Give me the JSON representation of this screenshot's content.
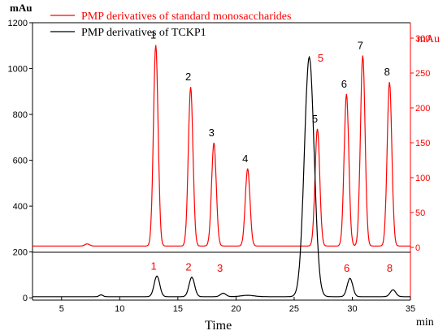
{
  "chart_data": {
    "type": "line",
    "xlabel": "Time",
    "xunit": "min",
    "xlim": [
      2.5,
      35
    ],
    "x_ticks": [
      5,
      10,
      15,
      20,
      25,
      30,
      35
    ],
    "left_axis": {
      "unit": "mAu",
      "color": "#000000",
      "ylim": [
        -10,
        1200
      ],
      "ticks": [
        0,
        200,
        400,
        600,
        800,
        1000,
        1200
      ]
    },
    "right_axis": {
      "unit": "mAu",
      "color": "#ff0000",
      "ylim": [
        -10,
        315
      ],
      "ticks": [
        0,
        50,
        100,
        150,
        200,
        250,
        300
      ]
    },
    "legend": {
      "position": "top-left",
      "entries": [
        {
          "label": "PMP derivatives of standard monosaccharides",
          "color": "#ff0000"
        },
        {
          "label": "PMP derivatives of TCKP1",
          "color": "#000000"
        }
      ]
    },
    "series": [
      {
        "name": "PMP derivatives of standard monosaccharides",
        "axis": "right",
        "color": "#ff0000",
        "baseline": 2,
        "peaks": [
          {
            "label": "1",
            "x": 13.1,
            "y": 290
          },
          {
            "label": "2",
            "x": 16.1,
            "y": 230
          },
          {
            "label": "3",
            "x": 18.1,
            "y": 150
          },
          {
            "label": "4",
            "x": 21.0,
            "y": 113
          },
          {
            "label": "5",
            "x": 27.0,
            "y": 170
          },
          {
            "label": "6",
            "x": 29.5,
            "y": 220
          },
          {
            "label": "7",
            "x": 30.9,
            "y": 275
          },
          {
            "label": "8",
            "x": 33.2,
            "y": 237
          }
        ]
      },
      {
        "name": "PMP derivatives of TCKP1",
        "axis": "left",
        "color": "#000000",
        "baseline": 5,
        "peaks": [
          {
            "label": "1",
            "x": 13.2,
            "y": 95
          },
          {
            "label": "2",
            "x": 16.2,
            "y": 90
          },
          {
            "label": "3",
            "x": 18.9,
            "y": 20
          },
          {
            "label": "5",
            "x": 26.3,
            "y": 1050
          },
          {
            "label": "6",
            "x": 29.8,
            "y": 85
          },
          {
            "label": "8",
            "x": 33.5,
            "y": 35
          }
        ]
      }
    ]
  }
}
